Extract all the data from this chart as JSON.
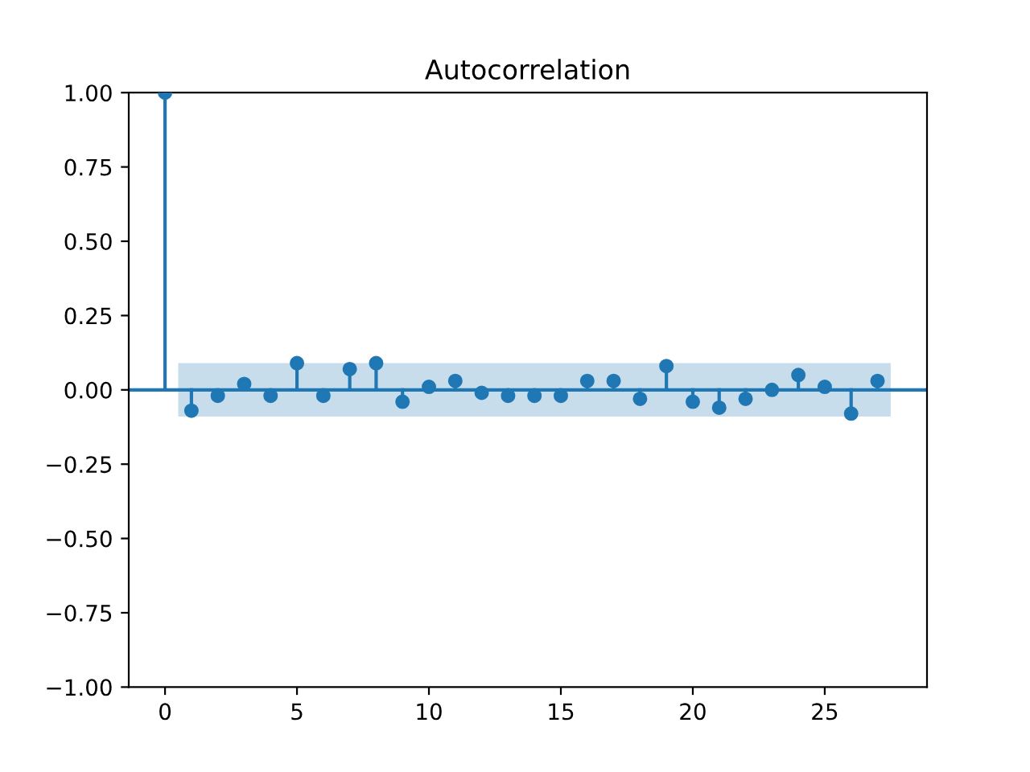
{
  "chart_data": {
    "type": "lollipop",
    "title": "Autocorrelation",
    "xlim": [
      -1.375,
      28.875
    ],
    "xticks": [
      0,
      5,
      10,
      15,
      20,
      25
    ],
    "ylim": [
      -1,
      1
    ],
    "yticks": [
      {
        "value": -1,
        "label": "−1.00"
      },
      {
        "value": -0.75,
        "label": "−0.75"
      },
      {
        "value": -0.5,
        "label": "−0.50"
      },
      {
        "value": -0.25,
        "label": "−0.25"
      },
      {
        "value": 0,
        "label": "0.00"
      },
      {
        "value": 0.25,
        "label": "0.25"
      },
      {
        "value": 0.5,
        "label": "0.50"
      },
      {
        "value": 0.75,
        "label": "0.75"
      },
      {
        "value": 1,
        "label": "1.00"
      }
    ],
    "grid": false,
    "legend": false,
    "marker": "circle",
    "ref_lines": [
      {
        "axis": "y",
        "value": 0,
        "color": "#1f77b4"
      }
    ],
    "bands": [
      {
        "axis": "y",
        "from": -0.09,
        "to": 0.09,
        "color": "#1f77b4"
      }
    ],
    "series": [
      {
        "color": "#1f77b4",
        "x": [
          0,
          1,
          2,
          3,
          4,
          5,
          6,
          7,
          8,
          9,
          10,
          11,
          12,
          13,
          14,
          15,
          16,
          17,
          18,
          19,
          20,
          21,
          22,
          23,
          24,
          25,
          26,
          27
        ],
        "values": [
          1.0,
          -0.07,
          -0.02,
          0.02,
          -0.02,
          0.09,
          -0.02,
          0.07,
          0.09,
          -0.04,
          0.01,
          0.03,
          -0.01,
          -0.02,
          -0.02,
          -0.02,
          0.03,
          0.03,
          -0.03,
          0.08,
          -0.04,
          -0.06,
          -0.03,
          0.0,
          0.05,
          0.01,
          -0.08,
          0.03
        ]
      }
    ]
  }
}
